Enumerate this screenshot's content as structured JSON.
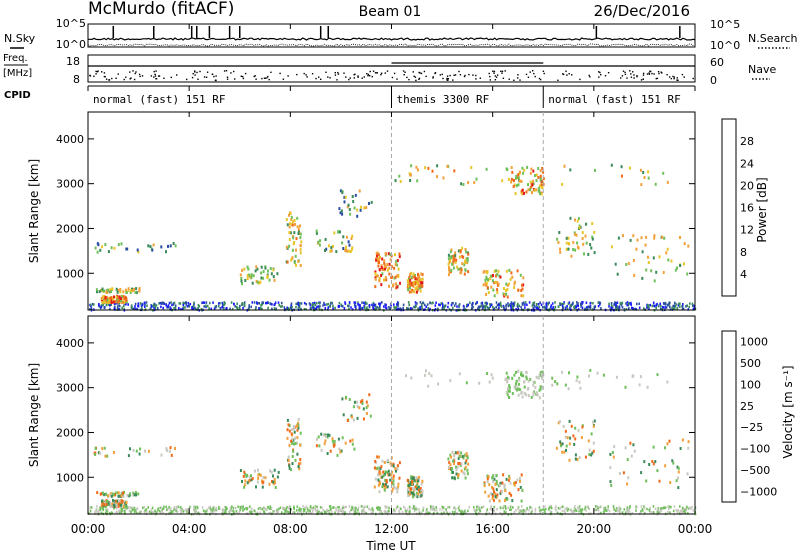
{
  "header": {
    "title": "McMurdo (fitACF)",
    "beam": "Beam 01",
    "date": "26/Dec/2016"
  },
  "colors": {
    "power": [
      "#1a1aff",
      "#2b4fa0",
      "#3a8a5a",
      "#6fbf5a",
      "#e8c62a",
      "#f2a13a",
      "#f06a1a",
      "#e31a1a"
    ],
    "velocity": [
      "#e31a1a",
      "#f06a1a",
      "#f2a13a",
      "#c8c8c0",
      "#6fbf5a",
      "#3a8a5a",
      "#2b4fa0",
      "#1a1aff"
    ]
  },
  "chart_data": [
    {
      "type": "line",
      "name": "status-panel",
      "left_labels": {
        "nsky": "N.Sky",
        "freq_line1": "Freq.",
        "freq_line2": "[MHz]",
        "cpid": "CPID"
      },
      "right_labels": {
        "nsearch": "N.Search",
        "nave": "Nave"
      },
      "noise_ticks_left": [
        "10^5",
        "10^0"
      ],
      "noise_ticks_right": [
        "10^5",
        "10^0"
      ],
      "freq_ticks_left": [
        "18",
        "8"
      ],
      "nave_ticks_right": [
        "60",
        "0"
      ],
      "cpid_segments": [
        {
          "label": "normal (fast) 151 RF",
          "start": 0,
          "end": 12
        },
        {
          "label": "themis 3300 RF",
          "start": 12,
          "end": 18
        },
        {
          "label": "normal (fast) 151 RF",
          "start": 18,
          "end": 24
        }
      ],
      "xlim": [
        0,
        24
      ]
    },
    {
      "type": "heatmap",
      "name": "power",
      "ylabel": "Slant Range [km]",
      "yticks": [
        1000,
        2000,
        3000,
        4000
      ],
      "ylim": [
        180,
        4600
      ],
      "xlim": [
        0,
        24
      ],
      "colorbar": {
        "label": "Power [dB]",
        "ticks": [
          "4",
          "8",
          "12",
          "16",
          "20",
          "24",
          "28"
        ],
        "range": [
          0,
          32
        ]
      },
      "dashed_lines_hours": [
        12,
        18
      ]
    },
    {
      "type": "heatmap",
      "name": "velocity",
      "ylabel": "Slant Range [km]",
      "yticks": [
        1000,
        2000,
        3000,
        4000
      ],
      "ylim": [
        180,
        4600
      ],
      "xlim": [
        0,
        24
      ],
      "xticks": [
        "00:00",
        "04:00",
        "08:00",
        "12:00",
        "16:00",
        "20:00",
        "00:00"
      ],
      "xlabel": "Time UT",
      "colorbar": {
        "label": "Velocity [m s⁻¹]",
        "ticks": [
          "1000",
          "500",
          "100",
          "25",
          "−25",
          "−100",
          "−500",
          "−1000"
        ]
      },
      "dashed_lines_hours": [
        12,
        18
      ]
    }
  ]
}
